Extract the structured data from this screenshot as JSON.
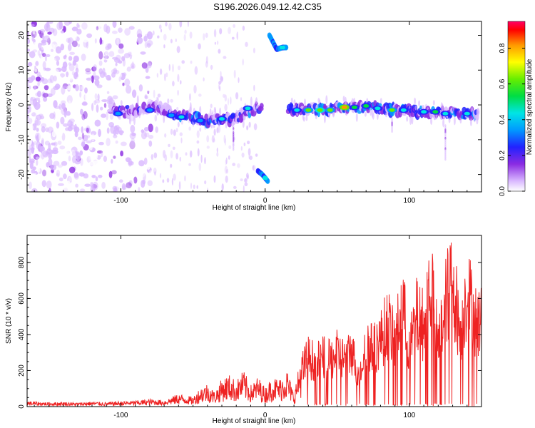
{
  "page_title": "S196.2026.049.12.42.C35",
  "chart_data": [
    {
      "type": "heatmap",
      "title": "S196.2026.049.12.42.C35",
      "xlabel": "Height of straight line (km)",
      "ylabel": "Frequency (Hz)",
      "xlim": [
        -165,
        150
      ],
      "ylim": [
        -25,
        24
      ],
      "xticks": [
        -100,
        0,
        100
      ],
      "yticks": [
        -20,
        -10,
        0,
        10,
        20
      ],
      "colorbar": {
        "label": "Normalized spectral amplitude",
        "range": [
          0,
          0.95
        ],
        "ticks": [
          0.0,
          0.2,
          0.4,
          0.6,
          0.8
        ],
        "tick_labels": [
          "0.0",
          "0.2",
          "0.4",
          "0.6",
          "0.8"
        ]
      },
      "features": [
        {
          "name": "main-trace",
          "x": [
            -105,
            -90,
            -75,
            -60,
            -40,
            -20,
            -10,
            -5,
            15,
            30,
            50,
            70,
            90,
            110,
            130,
            148
          ],
          "y": [
            -2.5,
            -1.5,
            -0.5,
            -3,
            -4.5,
            -4,
            -1.5,
            -0.5,
            -1.5,
            -1.5,
            -1,
            -0.5,
            -1.5,
            -2,
            -2.5,
            -2.5
          ]
        },
        {
          "name": "upper-branch",
          "x": [
            3,
            8,
            12,
            15
          ],
          "y": [
            20,
            16,
            16.5,
            16.5
          ]
        },
        {
          "name": "lower-branch",
          "x": [
            -5,
            -2,
            0,
            2
          ],
          "y": [
            -19,
            -20,
            -21,
            -22
          ]
        }
      ]
    },
    {
      "type": "line",
      "xlabel": "Height of straight line (km)",
      "ylabel": "SNR (10 * v/v)",
      "xlim": [
        -165,
        150
      ],
      "ylim": [
        0,
        950
      ],
      "xticks": [
        -100,
        0,
        100
      ],
      "yticks": [
        0,
        200,
        400,
        600,
        800
      ],
      "series": [
        {
          "name": "SNR",
          "color": "#ee2222",
          "x": [
            -165,
            -150,
            -140,
            -130,
            -120,
            -110,
            -100,
            -90,
            -80,
            -70,
            -60,
            -50,
            -45,
            -40,
            -35,
            -30,
            -25,
            -20,
            -15,
            -10,
            -5,
            0,
            5,
            10,
            15,
            20,
            25,
            30,
            35,
            40,
            45,
            50,
            55,
            60,
            65,
            70,
            75,
            80,
            85,
            90,
            95,
            100,
            105,
            110,
            115,
            120,
            125,
            130,
            135,
            140,
            145,
            150
          ],
          "values": [
            25,
            20,
            22,
            18,
            24,
            20,
            25,
            28,
            35,
            30,
            60,
            45,
            90,
            110,
            70,
            130,
            150,
            120,
            170,
            100,
            140,
            90,
            140,
            130,
            180,
            60,
            250,
            330,
            300,
            330,
            310,
            360,
            320,
            380,
            200,
            430,
            380,
            450,
            560,
            420,
            700,
            380,
            600,
            550,
            860,
            400,
            700,
            880,
            500,
            780,
            600,
            560
          ]
        }
      ]
    }
  ]
}
